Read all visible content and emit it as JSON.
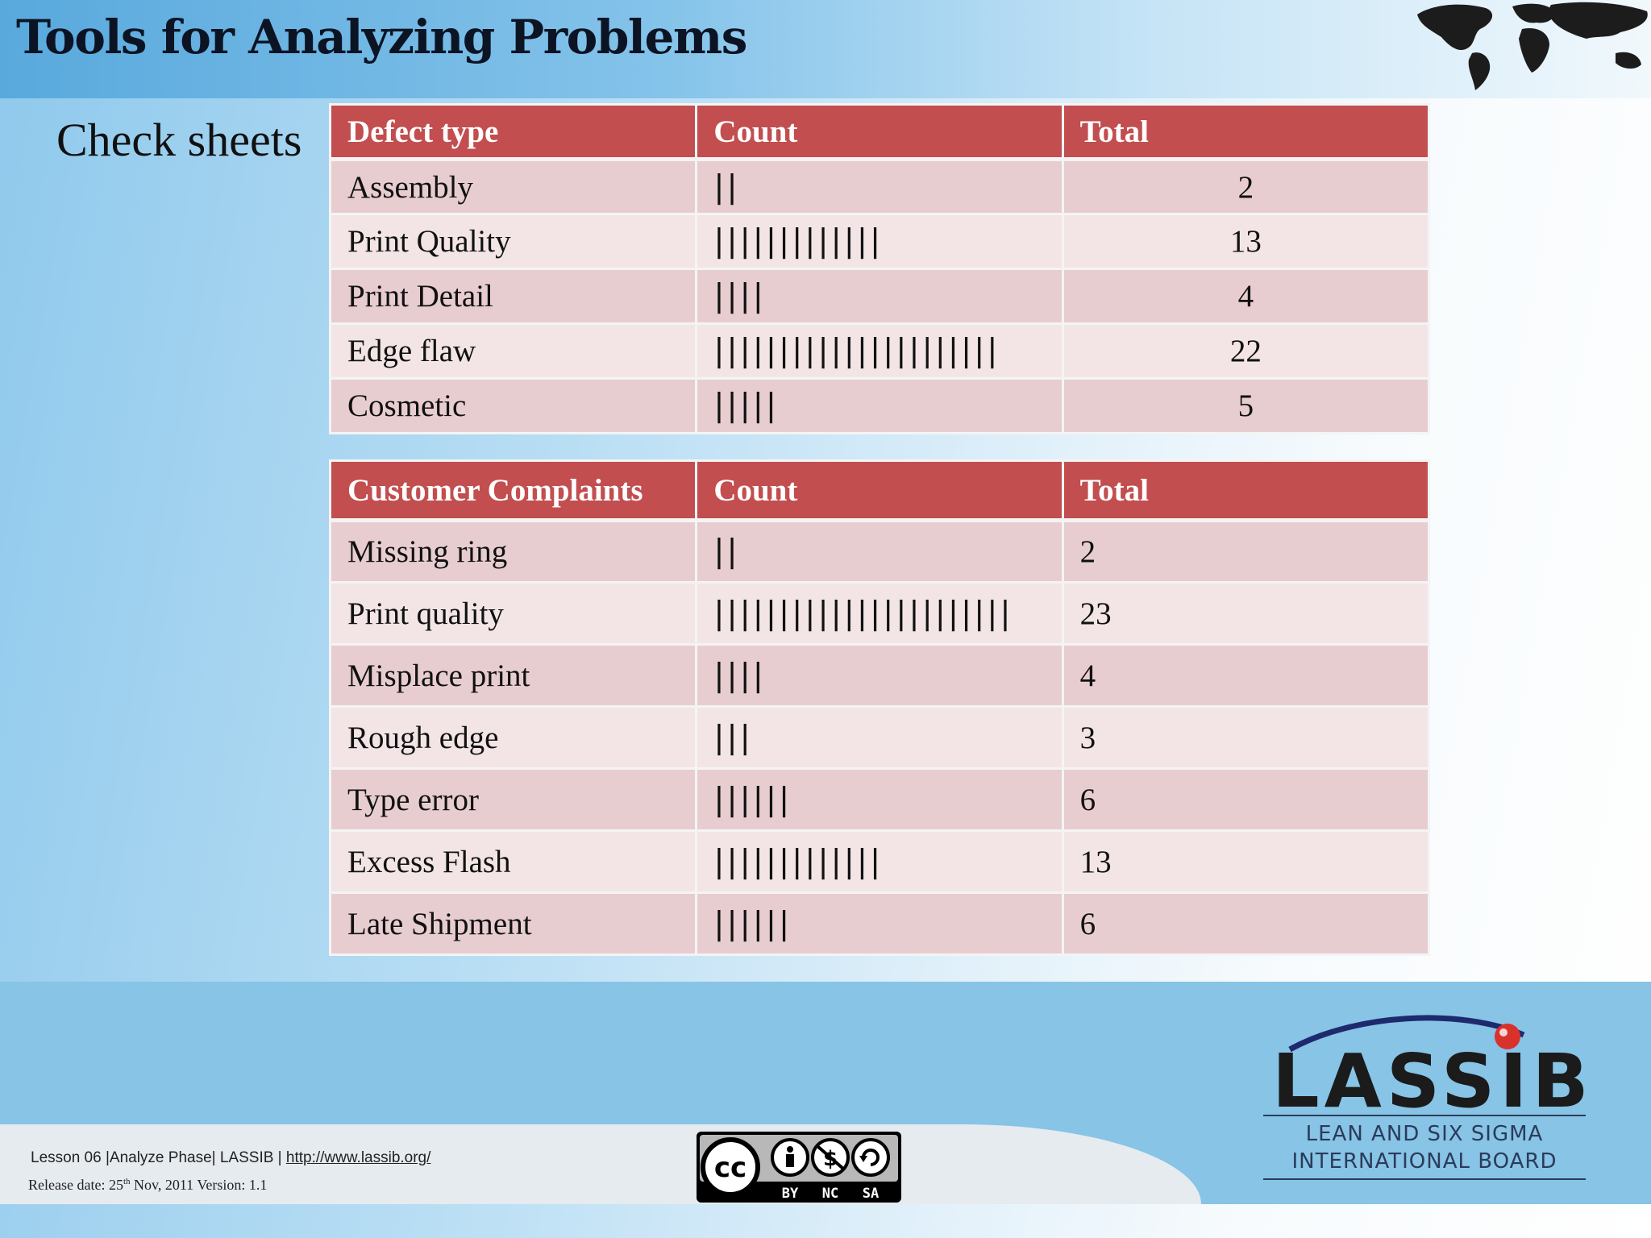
{
  "title": "Tools for Analyzing Problems",
  "subtitle": "Check sheets",
  "defect_table": {
    "headers": [
      "Defect type",
      "Count",
      "Total"
    ],
    "rows": [
      {
        "type": "Assembly",
        "count": "||",
        "total": "2"
      },
      {
        "type": "Print Quality",
        "count": "|||||||||||||",
        "total": "13"
      },
      {
        "type": "Print Detail",
        "count": "||||",
        "total": "4"
      },
      {
        "type": "Edge flaw",
        "count": "||||||||||||||||||||||",
        "total": "22"
      },
      {
        "type": "Cosmetic",
        "count": "|||||",
        "total": "5"
      }
    ]
  },
  "complaints_table": {
    "headers": [
      "Customer Complaints",
      "Count",
      "Total"
    ],
    "rows": [
      {
        "type": "Missing ring",
        "count": "||",
        "total": "2"
      },
      {
        "type": "Print quality",
        "count": "|||||||||||||||||||||||",
        "total": "23"
      },
      {
        "type": "Misplace print",
        "count": "||||",
        "total": "4"
      },
      {
        "type": "Rough edge",
        "count": "|||",
        "total": "3"
      },
      {
        "type": "Type error",
        "count": "||||||",
        "total": "6"
      },
      {
        "type": "Excess Flash",
        "count": "|||||||||||||",
        "total": "13"
      },
      {
        "type": "Late Shipment",
        "count": "||||||",
        "total": "6"
      }
    ]
  },
  "footer": {
    "lesson": "Lesson 06 |Analyze  Phase| LASSIB | ",
    "link": "http://www.lassib.org/",
    "release_prefix": "Release date: 25",
    "release_sup": "th",
    "release_suffix": "  Nov,  2011  Version: 1.1"
  },
  "cc_badge": {
    "cc": "cc",
    "by": "BY",
    "nc": "NC",
    "sa": "SA"
  },
  "logo": {
    "name": "LASSIB",
    "line1": "LEAN AND SIX SIGMA",
    "line2": "INTERNATIONAL BOARD"
  },
  "colors": {
    "header_red": "#c24e4f",
    "row_dark": "#e8cdd0",
    "row_light": "#f3e5e6",
    "band_blue": "#87c4e6"
  }
}
